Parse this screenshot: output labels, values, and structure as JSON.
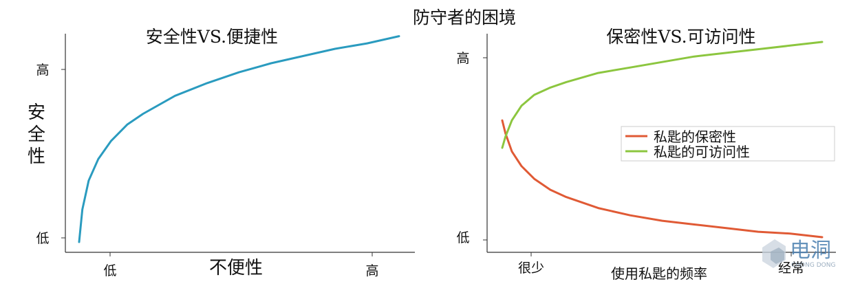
{
  "figure_title": "防守者的困境",
  "chart_data": [
    {
      "type": "line",
      "title": "安全性VS.便捷性",
      "xlabel": "不便性",
      "ylabel": "安全性",
      "xticks": [
        "低",
        "高"
      ],
      "yticks": [
        "低",
        "高"
      ],
      "xlim": [
        0,
        1
      ],
      "ylim": [
        0,
        1.15
      ],
      "grid": false,
      "series": [
        {
          "color": "#2a9bbf",
          "x": [
            0.0,
            0.01,
            0.03,
            0.06,
            0.1,
            0.15,
            0.2,
            0.3,
            0.4,
            0.5,
            0.6,
            0.7,
            0.8,
            0.9,
            1.0
          ],
          "y": [
            0.0,
            0.18,
            0.34,
            0.46,
            0.56,
            0.65,
            0.71,
            0.81,
            0.88,
            0.94,
            0.99,
            1.03,
            1.07,
            1.1,
            1.14
          ]
        }
      ]
    },
    {
      "type": "line",
      "title": "保密性VS.可访问性",
      "xlabel": "使用私匙的频率",
      "xticks": [
        "很少",
        "经常"
      ],
      "yticks": [
        "低",
        "高"
      ],
      "xlim": [
        0,
        1
      ],
      "ylim": [
        0,
        1.1
      ],
      "grid": false,
      "legend": "right",
      "series": [
        {
          "name": "私匙的保密性",
          "color": "#e05a35",
          "x": [
            0.0,
            0.01,
            0.03,
            0.06,
            0.1,
            0.15,
            0.2,
            0.3,
            0.4,
            0.5,
            0.6,
            0.7,
            0.8,
            0.9,
            1.0
          ],
          "y": [
            0.67,
            0.6,
            0.5,
            0.42,
            0.35,
            0.29,
            0.25,
            0.19,
            0.15,
            0.12,
            0.1,
            0.08,
            0.06,
            0.05,
            0.03
          ]
        },
        {
          "name": "私匙的可访问性",
          "color": "#8cc63f",
          "x": [
            0.0,
            0.01,
            0.03,
            0.06,
            0.1,
            0.15,
            0.2,
            0.3,
            0.4,
            0.5,
            0.6,
            0.7,
            0.8,
            0.9,
            1.0
          ],
          "y": [
            0.52,
            0.58,
            0.67,
            0.75,
            0.81,
            0.85,
            0.88,
            0.93,
            0.96,
            0.99,
            1.02,
            1.04,
            1.06,
            1.08,
            1.1
          ]
        }
      ]
    }
  ],
  "watermark": {
    "main": "电洞",
    "sub": "CHONG DONG"
  }
}
